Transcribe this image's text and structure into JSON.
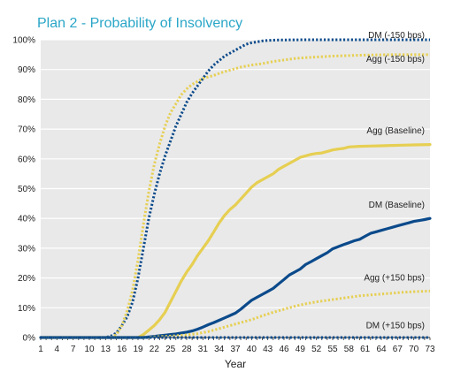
{
  "chart_data": {
    "type": "line",
    "title": "Plan 2 - Probability of Insolvency",
    "xlabel": "Year",
    "ylabel": "",
    "x_ticks": [
      "1",
      "4",
      "7",
      "10",
      "13",
      "16",
      "19",
      "22",
      "25",
      "28",
      "31",
      "34",
      "37",
      "40",
      "43",
      "46",
      "49",
      "52",
      "55",
      "58",
      "61",
      "64",
      "67",
      "70",
      "73"
    ],
    "y_ticks": [
      "0%",
      "10%",
      "20%",
      "30%",
      "40%",
      "50%",
      "60%",
      "70%",
      "80%",
      "90%",
      "100%"
    ],
    "xlim": [
      1,
      73
    ],
    "ylim": [
      0,
      100
    ],
    "grid": "horizontal",
    "background": "#e9e9e9",
    "series": [
      {
        "name": "DM (-150 bps)",
        "color": "#0b4a8b",
        "style": "dotted",
        "x": [
          1,
          13,
          14,
          15,
          16,
          17,
          18,
          19,
          20,
          21,
          22,
          23,
          24,
          25,
          26,
          27,
          28,
          29,
          30,
          31,
          32,
          33,
          34,
          35,
          36,
          37,
          38,
          39,
          40,
          41,
          42,
          43,
          45,
          50,
          55,
          60,
          65,
          73
        ],
        "y": [
          0,
          0,
          0.5,
          1.5,
          4,
          7,
          12,
          20,
          30,
          40,
          48,
          55,
          61,
          66,
          71,
          75,
          79,
          82,
          84.5,
          87,
          89.5,
          91.5,
          93,
          94.5,
          95.5,
          96.5,
          97.5,
          98.5,
          99,
          99.3,
          99.6,
          99.8,
          99.9,
          100,
          100,
          100,
          100,
          100
        ]
      },
      {
        "name": "Agg (-150 bps)",
        "color": "#e6cf52",
        "style": "dotted",
        "x": [
          1,
          14,
          15,
          16,
          17,
          18,
          19,
          20,
          21,
          22,
          23,
          24,
          25,
          26,
          27,
          28,
          29,
          30,
          31,
          32,
          33,
          34,
          35,
          36,
          37,
          38,
          40,
          42,
          44,
          46,
          48,
          50,
          55,
          60,
          65,
          73
        ],
        "y": [
          0,
          0,
          1,
          4,
          9,
          16,
          26,
          38,
          49,
          58,
          65,
          71,
          75.5,
          78.5,
          81.5,
          83.5,
          85,
          86,
          87,
          87.5,
          88,
          88.7,
          89.3,
          89.8,
          90.3,
          90.8,
          91.5,
          92,
          92.7,
          93.2,
          93.7,
          94,
          94.5,
          94.8,
          95,
          95
        ]
      },
      {
        "name": "Agg (Baseline)",
        "color": "#e6cf52",
        "style": "solid",
        "x": [
          1,
          19,
          20,
          21,
          22,
          23,
          24,
          25,
          26,
          27,
          28,
          29,
          30,
          31,
          32,
          33,
          34,
          35,
          36,
          37,
          38,
          39,
          40,
          41,
          42,
          43,
          44,
          45,
          46,
          47,
          48,
          49,
          50,
          51,
          52,
          53,
          54,
          55,
          56,
          57,
          58,
          60,
          62,
          64,
          66,
          68,
          70,
          73
        ],
        "y": [
          0,
          0,
          1,
          2.5,
          4,
          6,
          8.5,
          12,
          15.5,
          19,
          22,
          24.5,
          27.5,
          30,
          32.5,
          35.5,
          38.5,
          41,
          43,
          44.5,
          46.5,
          48.5,
          50.5,
          52,
          53,
          54,
          55,
          56.5,
          57.5,
          58.5,
          59.5,
          60.5,
          61,
          61.5,
          61.8,
          62,
          62.5,
          63,
          63.3,
          63.5,
          64,
          64.2,
          64.3,
          64.4,
          64.5,
          64.6,
          64.7,
          64.8
        ]
      },
      {
        "name": "DM (Baseline)",
        "color": "#0b4a8b",
        "style": "solid",
        "x": [
          1,
          20,
          21,
          22,
          23,
          24,
          25,
          26,
          27,
          28,
          29,
          30,
          31,
          32,
          33,
          34,
          35,
          36,
          37,
          38,
          39,
          40,
          41,
          42,
          43,
          44,
          45,
          46,
          47,
          48,
          49,
          50,
          51,
          52,
          53,
          54,
          55,
          56,
          57,
          58,
          59,
          60,
          61,
          62,
          63,
          64,
          65,
          66,
          67,
          68,
          69,
          70,
          71,
          72,
          73
        ],
        "y": [
          0,
          0,
          0.2,
          0.4,
          0.6,
          0.8,
          1,
          1.2,
          1.5,
          1.8,
          2.2,
          2.8,
          3.5,
          4.3,
          5,
          5.8,
          6.6,
          7.4,
          8.2,
          9.5,
          11,
          12.5,
          13.5,
          14.5,
          15.5,
          16.5,
          18,
          19.5,
          21,
          22,
          23,
          24.5,
          25.5,
          26.5,
          27.5,
          28.5,
          29.8,
          30.5,
          31.2,
          31.8,
          32.5,
          33,
          34,
          35,
          35.5,
          36,
          36.5,
          37,
          37.5,
          38,
          38.5,
          39,
          39.3,
          39.6,
          40
        ]
      },
      {
        "name": "Agg (+150 bps)",
        "color": "#e6cf52",
        "style": "dotted",
        "x": [
          1,
          20,
          22,
          24,
          26,
          28,
          30,
          32,
          34,
          36,
          38,
          40,
          42,
          44,
          46,
          48,
          50,
          52,
          54,
          56,
          58,
          60,
          62,
          64,
          66,
          68,
          70,
          73
        ],
        "y": [
          0,
          0,
          0.2,
          0.4,
          0.6,
          0.9,
          1.3,
          2,
          3,
          4,
          5,
          6,
          7.3,
          8.5,
          9.5,
          10.5,
          11.3,
          12,
          12.5,
          13,
          13.5,
          14,
          14.3,
          14.6,
          14.9,
          15.2,
          15.4,
          15.6
        ]
      },
      {
        "name": "DM (+150 bps)",
        "color": "#0b4a8b",
        "style": "dotted",
        "x": [
          1,
          73
        ],
        "y": [
          0,
          0
        ]
      }
    ],
    "series_labels": [
      {
        "text": "DM  (-150 bps)",
        "at_x": 73,
        "at_y": 100
      },
      {
        "text": "Agg (-150 bps)",
        "at_x": 73,
        "at_y": 92
      },
      {
        "text": "Agg (Baseline)",
        "at_x": 73,
        "at_y": 68
      },
      {
        "text": "DM  (Baseline)",
        "at_x": 73,
        "at_y": 43
      },
      {
        "text": "Agg (+150 bps)",
        "at_x": 73,
        "at_y": 18.5
      },
      {
        "text": "DM  (+150 bps)",
        "at_x": 73,
        "at_y": 2.5
      }
    ]
  }
}
